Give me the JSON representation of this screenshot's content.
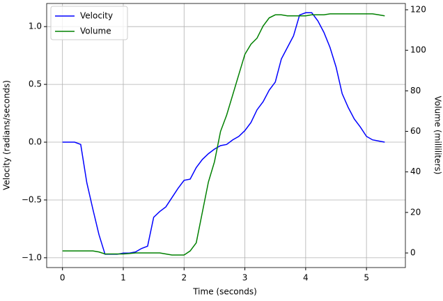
{
  "chart_data": {
    "type": "line",
    "xlabel": "Time (seconds)",
    "ylabel": "Velocity (radians/seconds)",
    "y2label": "Volume (milliliters)",
    "x": [
      0,
      0.1,
      0.2,
      0.3,
      0.4,
      0.5,
      0.6,
      0.7,
      0.8,
      0.9,
      1.0,
      1.1,
      1.2,
      1.3,
      1.4,
      1.5,
      1.6,
      1.7,
      1.8,
      1.9,
      2.0,
      2.1,
      2.2,
      2.3,
      2.4,
      2.5,
      2.6,
      2.7,
      2.8,
      2.9,
      3.0,
      3.1,
      3.2,
      3.3,
      3.4,
      3.5,
      3.6,
      3.7,
      3.8,
      3.9,
      4.0,
      4.1,
      4.2,
      4.3,
      4.4,
      4.5,
      4.6,
      4.7,
      4.8,
      4.9,
      5.0,
      5.1,
      5.2,
      5.3
    ],
    "series": [
      {
        "name": "Velocity",
        "color": "#0000ff",
        "axis": "y",
        "values": [
          0,
          0,
          0,
          -0.02,
          -0.35,
          -0.58,
          -0.8,
          -0.97,
          -0.97,
          -0.97,
          -0.96,
          -0.96,
          -0.95,
          -0.92,
          -0.9,
          -0.65,
          -0.6,
          -0.56,
          -0.48,
          -0.4,
          -0.33,
          -0.32,
          -0.22,
          -0.15,
          -0.1,
          -0.06,
          -0.03,
          -0.02,
          0.02,
          0.05,
          0.1,
          0.17,
          0.28,
          0.35,
          0.45,
          0.52,
          0.72,
          0.82,
          0.92,
          1.1,
          1.12,
          1.12,
          1.05,
          0.95,
          0.82,
          0.65,
          0.42,
          0.3,
          0.2,
          0.13,
          0.05,
          0.02,
          0.01,
          0
        ]
      },
      {
        "name": "Volume",
        "color": "#008000",
        "axis": "y2",
        "values": [
          1,
          1,
          1,
          1,
          1,
          1,
          0.5,
          -0.5,
          -0.5,
          -0.5,
          -0.5,
          -0.3,
          0,
          0,
          0,
          0,
          0,
          -0.5,
          -1,
          -1,
          -1,
          1,
          5,
          20,
          35,
          45,
          60,
          68,
          78,
          88,
          98,
          103,
          106,
          112,
          116,
          117.5,
          117.5,
          117,
          117,
          117,
          117,
          117.5,
          117.5,
          117.5,
          118,
          118,
          118,
          118,
          118,
          118,
          118,
          118,
          117.5,
          117
        ]
      }
    ],
    "xlim": [
      -0.26,
      5.64
    ],
    "xticks": [
      0,
      1,
      2,
      3,
      4,
      5
    ],
    "ylim": [
      -1.085,
      1.2
    ],
    "yticks": [
      {
        "value": -1.0,
        "label": "−1.0"
      },
      {
        "value": -0.5,
        "label": "−0.5"
      },
      {
        "value": 0.0,
        "label": "0.0"
      },
      0.5,
      {
        "value": 1.0,
        "label": "1.0"
      }
    ],
    "y2lim": [
      -7.2,
      123.1
    ],
    "y2ticks": [
      0,
      20,
      40,
      60,
      80,
      100,
      120
    ],
    "grid": true,
    "legend": "upper-left"
  }
}
